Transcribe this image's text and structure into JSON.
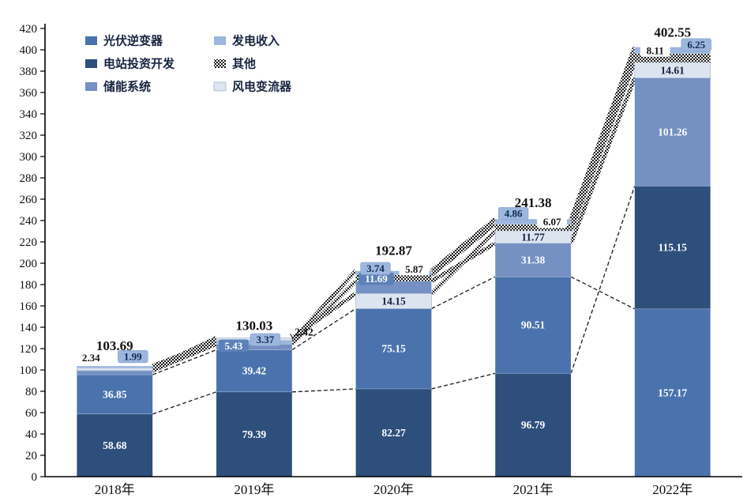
{
  "chart_data": {
    "type": "bar",
    "variant": "stacked",
    "title": "",
    "xlabel": "",
    "ylabel": "",
    "ylim": [
      0,
      420
    ],
    "ytick_step": 20,
    "grid": false,
    "legend_position": "top-left-inside",
    "categories": [
      "2018年",
      "2019年",
      "2020年",
      "2021年",
      "2022年"
    ],
    "legend_columns": [
      [
        "光伏逆变器",
        "电站投资开发",
        "储能系统"
      ],
      [
        "发电收入",
        "其他",
        "风电变流器"
      ]
    ],
    "series_colors": {
      "光伏逆变器": "#4a73ae",
      "电站投资开发": "#2e4e7b",
      "储能系统": "#7590c2",
      "发电收入": "#9cb6dd",
      "其他": "checker",
      "风电变流器": "#dce4f0"
    },
    "series_line_weight": {
      "光伏逆变器": "thin",
      "电站投资开发": "thin",
      "储能系统": "bold",
      "发电收入": "bold",
      "其他": "bold",
      "风电变流器": "bold"
    },
    "label_box_styles": {
      "box-blue": {
        "fill": "#5c81b8",
        "text": "#ffffff"
      },
      "box-light": {
        "fill": "#9cb6dd",
        "text": "#122a52"
      },
      "box-white": {
        "fill": "#ffffff",
        "text": "#111111"
      }
    },
    "bars": [
      {
        "category": "2018年",
        "total": "103.69",
        "total_dy": 25,
        "segments": [
          {
            "series": "电站投资开发",
            "value": 58.68,
            "label": "58.68",
            "style": "inside-white"
          },
          {
            "series": "光伏逆变器",
            "value": 36.85,
            "label": "36.85",
            "style": "inside-white"
          },
          {
            "series": "储能系统",
            "value": 3.83,
            "label": "",
            "style": "none"
          },
          {
            "series": "风电变流器",
            "value": 2.34,
            "label": "2.34",
            "style": "box-white",
            "dx": -30,
            "dy": -13
          },
          {
            "series": "发电收入",
            "value": 1.99,
            "label": "1.99",
            "style": "box-light",
            "dx": 23,
            "dy": -12
          }
        ]
      },
      {
        "category": "2019年",
        "total": "130.03",
        "total_dy": 15,
        "segments": [
          {
            "series": "电站投资开发",
            "value": 79.39,
            "label": "79.39",
            "style": "inside-white"
          },
          {
            "series": "光伏逆变器",
            "value": 39.42,
            "label": "39.42",
            "style": "inside-white"
          },
          {
            "series": "储能系统",
            "value": 5.43,
            "label": "5.43",
            "style": "box-blue",
            "dx": -26,
            "dy": 2
          },
          {
            "series": "发电收入",
            "value": 3.37,
            "label": "3.37",
            "style": "box-light",
            "dx": 14,
            "dy": -1
          },
          {
            "series": "风电变流器",
            "value": 2.42,
            "label": "2.42",
            "style": "plain-right",
            "dx": 63,
            "dy": -7
          }
        ]
      },
      {
        "category": "2020年",
        "total": "192.87",
        "total_dy": 25,
        "segments": [
          {
            "series": "电站投资开发",
            "value": 82.27,
            "label": "82.27",
            "style": "inside-white"
          },
          {
            "series": "光伏逆变器",
            "value": 75.15,
            "label": "75.15",
            "style": "inside-white"
          },
          {
            "series": "风电变流器",
            "value": 14.15,
            "label": "14.15",
            "style": "inside-dark"
          },
          {
            "series": "储能系统",
            "value": 11.69,
            "label": "11.69",
            "style": "box-blue",
            "dx": -22,
            "dy": -3
          },
          {
            "series": "其他",
            "value": 5.87,
            "label": "5.87",
            "style": "box-white",
            "dx": 26,
            "dy": -7
          },
          {
            "series": "发电收入",
            "value": 3.74,
            "label": "3.74",
            "style": "box-light",
            "dx": -23,
            "dy": -3
          }
        ]
      },
      {
        "category": "2021年",
        "total": "241.38",
        "total_dy": 20,
        "segments": [
          {
            "series": "电站投资开发",
            "value": 96.79,
            "label": "96.79",
            "style": "inside-white"
          },
          {
            "series": "光伏逆变器",
            "value": 90.51,
            "label": "90.51",
            "style": "inside-white"
          },
          {
            "series": "储能系统",
            "value": 31.38,
            "label": "31.38",
            "style": "inside-white"
          },
          {
            "series": "风电变流器",
            "value": 11.77,
            "label": "11.77",
            "style": "inside-dark"
          },
          {
            "series": "其他",
            "value": 6.07,
            "label": "6.07",
            "style": "box-white",
            "dx": 24,
            "dy": -3
          },
          {
            "series": "发电收入",
            "value": 4.86,
            "label": "4.86",
            "style": "box-light",
            "dx": -25,
            "dy": -7
          }
        ]
      },
      {
        "category": "2022年",
        "total": "402.55",
        "total_dy": 18,
        "segments": [
          {
            "series": "光伏逆变器",
            "value": 157.17,
            "label": "157.17",
            "style": "inside-white"
          },
          {
            "series": "电站投资开发",
            "value": 115.15,
            "label": "115.15",
            "style": "inside-white"
          },
          {
            "series": "储能系统",
            "value": 101.26,
            "label": "101.26",
            "style": "inside-white"
          },
          {
            "series": "风电变流器",
            "value": 14.61,
            "label": "14.61",
            "style": "inside-dark"
          },
          {
            "series": "其他",
            "value": 8.11,
            "label": "8.11",
            "style": "box-white",
            "dx": -22,
            "dy": -4
          },
          {
            "series": "发电收入",
            "value": 6.25,
            "label": "6.25",
            "style": "box-light",
            "dx": 30,
            "dy": -3
          }
        ]
      }
    ]
  }
}
